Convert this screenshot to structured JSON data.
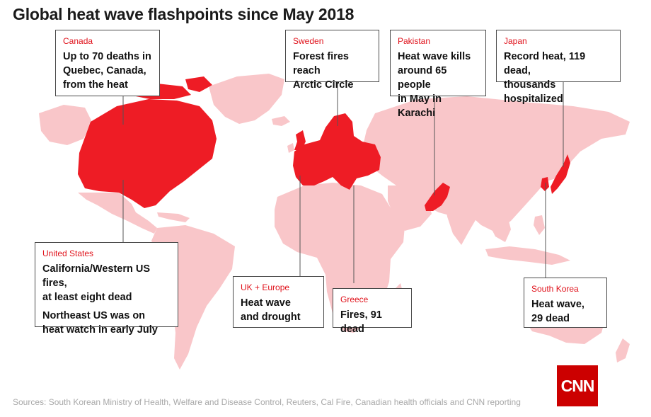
{
  "title": "Global heat wave flashpoints since May 2018",
  "colors": {
    "affected": "#ee1c25",
    "land": "#f9c6c9",
    "callout_border": "#4a4a4a",
    "region_label": "#e0121b",
    "logo": "#cc0000"
  },
  "callouts": {
    "canada": {
      "region": "Canada",
      "lines": [
        "Up to 70 deaths in\nQuebec, Canada,\nfrom the heat"
      ]
    },
    "sweden": {
      "region": "Sweden",
      "lines": [
        "Forest fires reach\nArctic Circle"
      ]
    },
    "pakistan": {
      "region": "Pakistan",
      "lines": [
        "Heat wave kills\naround 65 people\nin May in Karachi"
      ]
    },
    "japan": {
      "region": "Japan",
      "lines": [
        "Record heat, 119 dead,\nthousands hospitalized"
      ]
    },
    "united_states": {
      "region": "United States",
      "lines": [
        "California/Western US fires,\nat least eight dead",
        "Northeast US was on\nheat watch in early July"
      ]
    },
    "uk_europe": {
      "region": "UK + Europe",
      "lines": [
        "Heat wave\nand drought"
      ]
    },
    "greece": {
      "region": "Greece",
      "lines": [
        "Fires, 91 dead"
      ]
    },
    "south_korea": {
      "region": "South Korea",
      "lines": [
        "Heat wave,\n29 dead"
      ]
    }
  },
  "sources": "Sources: South Korean Ministry of Health, Welfare and Disease Control, Reuters, Cal Fire, Canadian health officials and CNN reporting",
  "logo_text": "CNN"
}
